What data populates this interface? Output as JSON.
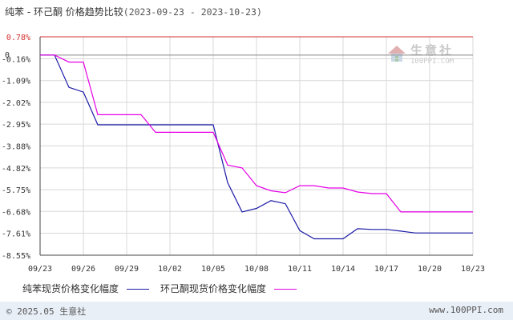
{
  "title": {
    "main": "纯苯 - 环己酮 价格趋势比较",
    "dates": "(2023-09-23 - 2023-10-23)"
  },
  "watermark": {
    "name": "生意社",
    "url": "100PPI.COM"
  },
  "footer": {
    "copyright": "© 2025.05 生意社",
    "site": "www.100PPI.com"
  },
  "colors": {
    "series1": "#1a1aa6",
    "series2": "#e600e6",
    "grid": "#d8d8d8",
    "axis": "#444444",
    "redline": "#d23030"
  },
  "chart_data": {
    "type": "line",
    "y_ticks": [
      "0.78%",
      "-0.16%",
      "-1.09%",
      "-2.02%",
      "-2.95%",
      "-3.88%",
      "-4.82%",
      "-5.75%",
      "-6.68%",
      "-7.61%",
      "-8.55%"
    ],
    "y_tick_values": [
      0.78,
      -0.16,
      -1.09,
      -2.02,
      -2.95,
      -3.88,
      -4.82,
      -5.75,
      -6.68,
      -7.61,
      -8.55
    ],
    "ylim": [
      -8.55,
      0.78
    ],
    "x_ticks": [
      "09/23",
      "09/26",
      "09/29",
      "10/02",
      "10/05",
      "10/08",
      "10/11",
      "10/14",
      "10/17",
      "10/20",
      "10/23"
    ],
    "x_tick_days": [
      0,
      3,
      6,
      9,
      12,
      15,
      18,
      21,
      24,
      27,
      30
    ],
    "zero_line": 0,
    "grid": true,
    "legend_position": "bottom",
    "series": [
      {
        "name": "纯苯现货价格变化幅度",
        "color": "#1a1aa6",
        "points": [
          [
            0,
            0
          ],
          [
            1,
            0
          ],
          [
            2,
            -1.38
          ],
          [
            3,
            -1.58
          ],
          [
            4,
            -2.98
          ],
          [
            5,
            -2.98
          ],
          [
            12,
            -2.98
          ],
          [
            13,
            -5.45
          ],
          [
            14,
            -6.7
          ],
          [
            15,
            -6.55
          ],
          [
            16,
            -6.22
          ],
          [
            17,
            -6.35
          ],
          [
            18,
            -7.5
          ],
          [
            19,
            -7.85
          ],
          [
            20,
            -7.85
          ],
          [
            21,
            -7.85
          ],
          [
            22,
            -7.42
          ],
          [
            23,
            -7.45
          ],
          [
            24,
            -7.45
          ],
          [
            25,
            -7.52
          ],
          [
            26,
            -7.6
          ],
          [
            30,
            -7.6
          ]
        ]
      },
      {
        "name": "环己酮现货价格变化幅度",
        "color": "#e600e6",
        "points": [
          [
            0,
            0
          ],
          [
            1,
            0
          ],
          [
            2,
            -0.3
          ],
          [
            3,
            -0.3
          ],
          [
            4,
            -2.55
          ],
          [
            7,
            -2.55
          ],
          [
            8,
            -3.3
          ],
          [
            12,
            -3.3
          ],
          [
            13,
            -4.7
          ],
          [
            14,
            -4.82
          ],
          [
            15,
            -5.58
          ],
          [
            16,
            -5.8
          ],
          [
            17,
            -5.88
          ],
          [
            18,
            -5.58
          ],
          [
            19,
            -5.58
          ],
          [
            20,
            -5.68
          ],
          [
            21,
            -5.68
          ],
          [
            22,
            -5.85
          ],
          [
            23,
            -5.92
          ],
          [
            24,
            -5.92
          ],
          [
            25,
            -6.7
          ],
          [
            30,
            -6.7
          ]
        ]
      }
    ]
  }
}
